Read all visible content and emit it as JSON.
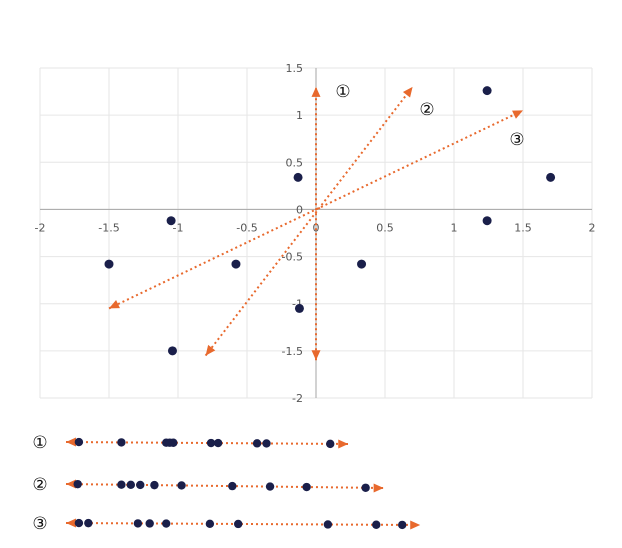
{
  "chart_data": [
    {
      "type": "scatter",
      "title": "",
      "xlabel": "",
      "ylabel": "",
      "xlim": [
        -2,
        2
      ],
      "ylim": [
        -2,
        1.5
      ],
      "x_ticks": [
        "-2",
        "-1.5",
        "-1",
        "-0.5",
        "0",
        "0.5",
        "1",
        "1.5",
        "2"
      ],
      "y_ticks": [
        "1.5",
        "1",
        "0.5",
        "0",
        "-0.5",
        "-1",
        "-1.5",
        "-2"
      ],
      "grid": true,
      "points": [
        {
          "x": -1.5,
          "y": -0.58
        },
        {
          "x": -1.05,
          "y": -0.12
        },
        {
          "x": -1.04,
          "y": -1.5
        },
        {
          "x": -0.58,
          "y": -0.58
        },
        {
          "x": -0.13,
          "y": 0.34
        },
        {
          "x": -0.12,
          "y": -1.05
        },
        {
          "x": 0.33,
          "y": -0.58
        },
        {
          "x": 1.24,
          "y": 1.26
        },
        {
          "x": 1.24,
          "y": -0.12
        },
        {
          "x": 1.7,
          "y": 0.34
        }
      ],
      "directions": [
        {
          "label": "①",
          "from": [
            0,
            -1.6
          ],
          "to": [
            0,
            1.3
          ],
          "both_heads": true
        },
        {
          "label": "②",
          "from": [
            -0.8,
            -1.55
          ],
          "to": [
            0.7,
            1.3
          ],
          "both_heads": true
        },
        {
          "label": "③",
          "from": [
            -1.5,
            -1.05
          ],
          "to": [
            1.5,
            1.05
          ],
          "both_heads": true
        }
      ],
      "colors": {
        "points": "#1a1f4a",
        "arrows": "#e8692d"
      }
    },
    {
      "type": "scatter",
      "title": "",
      "description_role": "1D projections of the points onto directions ①, ② and ③",
      "rows": [
        {
          "label": "①",
          "values": [
            0.05,
            0.41,
            0.79,
            0.82,
            0.85,
            1.17,
            1.23,
            1.56,
            1.64,
            2.18
          ]
        },
        {
          "label": "②",
          "values": [
            0.04,
            0.41,
            0.49,
            0.57,
            0.69,
            0.92,
            1.35,
            1.67,
            1.98,
            2.48
          ]
        },
        {
          "label": "③",
          "values": [
            0.05,
            0.13,
            0.55,
            0.65,
            0.79,
            1.16,
            1.4,
            2.16,
            2.57,
            2.79
          ]
        }
      ],
      "colors": {
        "points": "#1a1f4a",
        "arrows": "#e8692d"
      }
    }
  ]
}
